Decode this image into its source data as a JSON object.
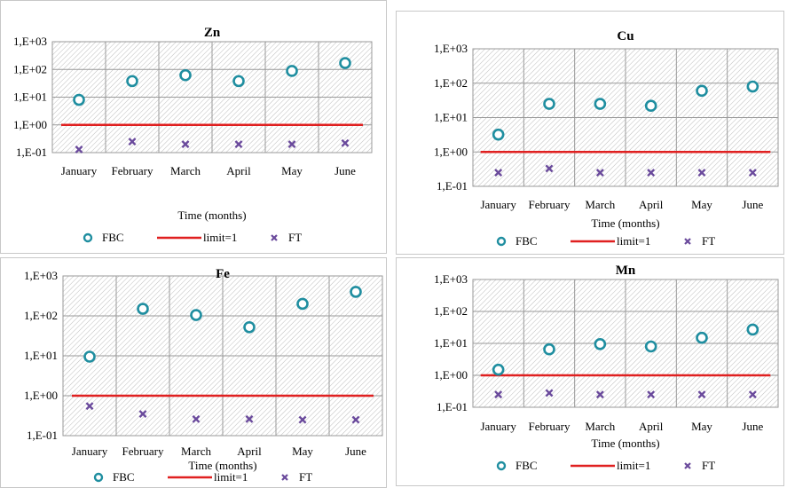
{
  "colors": {
    "fbc": "#1f8ea0",
    "limit": "#e02020",
    "ft": "#6a4a9c"
  },
  "chart_data": [
    {
      "type": "scatter",
      "title": "Zn",
      "xlabel": "Time (months)",
      "ylabel": "",
      "categories": [
        "January",
        "February",
        "March",
        "April",
        "May",
        "June"
      ],
      "yscale": "log",
      "ylim": [
        0.1,
        1000
      ],
      "yticks": [
        "1,E-01",
        "1,E+00",
        "1,E+01",
        "1,E+02",
        "1,E+03"
      ],
      "series": [
        {
          "name": "FBC",
          "values": [
            8,
            38,
            62,
            38,
            88,
            170
          ]
        },
        {
          "name": "limit=1",
          "values": [
            1,
            1,
            1,
            1,
            1,
            1
          ]
        },
        {
          "name": "FT",
          "values": [
            0.13,
            0.25,
            0.2,
            0.2,
            0.2,
            0.22
          ]
        }
      ]
    },
    {
      "type": "scatter",
      "title": "Cu",
      "xlabel": "Time (months)",
      "ylabel": "",
      "categories": [
        "January",
        "February",
        "March",
        "April",
        "May",
        "June"
      ],
      "yscale": "log",
      "ylim": [
        0.1,
        1000
      ],
      "yticks": [
        "1,E-01",
        "1,E+00",
        "1,E+01",
        "1,E+02",
        "1,E+03"
      ],
      "series": [
        {
          "name": "FBC",
          "values": [
            3.2,
            25,
            25,
            22,
            60,
            80
          ]
        },
        {
          "name": "limit=1",
          "values": [
            1,
            1,
            1,
            1,
            1,
            1
          ]
        },
        {
          "name": "FT",
          "values": [
            0.25,
            0.33,
            0.25,
            0.25,
            0.25,
            0.25
          ]
        }
      ]
    },
    {
      "type": "scatter",
      "title": "Fe",
      "xlabel": "Time (months)",
      "ylabel": "",
      "categories": [
        "January",
        "February",
        "March",
        "April",
        "May",
        "June"
      ],
      "yscale": "log",
      "ylim": [
        0.1,
        1000
      ],
      "yticks": [
        "1,E-01",
        "1,E+00",
        "1,E+01",
        "1,E+02",
        "1,E+03"
      ],
      "series": [
        {
          "name": "FBC",
          "values": [
            9.5,
            150,
            105,
            52,
            200,
            400
          ]
        },
        {
          "name": "limit=1",
          "values": [
            1,
            1,
            1,
            1,
            1,
            1
          ]
        },
        {
          "name": "FT",
          "values": [
            0.55,
            0.35,
            0.26,
            0.26,
            0.25,
            0.25
          ]
        }
      ]
    },
    {
      "type": "scatter",
      "title": "Mn",
      "xlabel": "Time (months)",
      "ylabel": "",
      "categories": [
        "January",
        "February",
        "March",
        "April",
        "May",
        "June"
      ],
      "yscale": "log",
      "ylim": [
        0.1,
        1000
      ],
      "yticks": [
        "1,E-01",
        "1,E+00",
        "1,E+01",
        "1,E+02",
        "1,E+03"
      ],
      "series": [
        {
          "name": "FBC",
          "values": [
            1.5,
            6.5,
            9.5,
            8,
            15,
            27
          ]
        },
        {
          "name": "limit=1",
          "values": [
            1,
            1,
            1,
            1,
            1,
            1
          ]
        },
        {
          "name": "FT",
          "values": [
            0.25,
            0.28,
            0.25,
            0.25,
            0.25,
            0.25
          ]
        }
      ]
    }
  ]
}
